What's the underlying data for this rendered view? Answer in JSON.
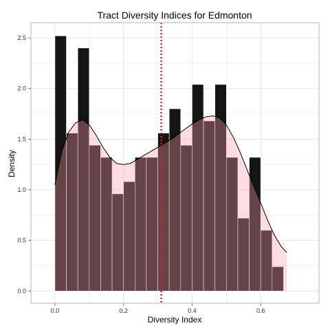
{
  "chart_data": {
    "type": "bar",
    "title": "Tract Diversity Indices for Edmonton",
    "xlabel": "Diversity Index",
    "ylabel": "Density",
    "xlim": [
      -0.07,
      0.77
    ],
    "ylim": [
      -0.12,
      2.65
    ],
    "x_ticks": [
      0.0,
      0.2,
      0.4,
      0.6
    ],
    "x_tick_labels": [
      "0.0",
      "0.2",
      "0.4",
      "0.6"
    ],
    "y_ticks": [
      0.0,
      0.5,
      1.0,
      1.5,
      2.0,
      2.5
    ],
    "y_tick_labels": [
      "0.0",
      "0.5",
      "1.0",
      "1.5",
      "2.0",
      "2.5"
    ],
    "grid": true,
    "bin_width": 0.03333,
    "bin_start": 0.0,
    "histogram_values": [
      2.52,
      1.56,
      2.4,
      1.44,
      1.32,
      0.96,
      1.08,
      1.32,
      1.32,
      1.56,
      1.8,
      1.44,
      2.04,
      1.68,
      2.04,
      1.32,
      0.72,
      1.32,
      0.6,
      0.24
    ],
    "density_curve": {
      "x": [
        0.0,
        0.02,
        0.04,
        0.06,
        0.08,
        0.1,
        0.12,
        0.14,
        0.16,
        0.18,
        0.2,
        0.22,
        0.24,
        0.26,
        0.28,
        0.3,
        0.32,
        0.34,
        0.36,
        0.38,
        0.4,
        0.42,
        0.44,
        0.46,
        0.48,
        0.5,
        0.52,
        0.54,
        0.56,
        0.58,
        0.6,
        0.62,
        0.64,
        0.66,
        0.676
      ],
      "y": [
        1.05,
        1.38,
        1.57,
        1.66,
        1.69,
        1.64,
        1.54,
        1.42,
        1.32,
        1.26,
        1.25,
        1.26,
        1.3,
        1.34,
        1.38,
        1.42,
        1.46,
        1.5,
        1.55,
        1.6,
        1.65,
        1.69,
        1.72,
        1.73,
        1.71,
        1.64,
        1.52,
        1.37,
        1.2,
        1.03,
        0.87,
        0.7,
        0.55,
        0.44,
        0.38
      ]
    },
    "mean_line_x": 0.31,
    "colors": {
      "bar_fill": "#141414",
      "density_fill": "#ff9aa6",
      "density_fill_opacity": 0.35,
      "density_line": "#000000",
      "mean_line": "#e8192c",
      "grid": "#e6e6e6",
      "panel_border": "#b5b5b5"
    }
  }
}
